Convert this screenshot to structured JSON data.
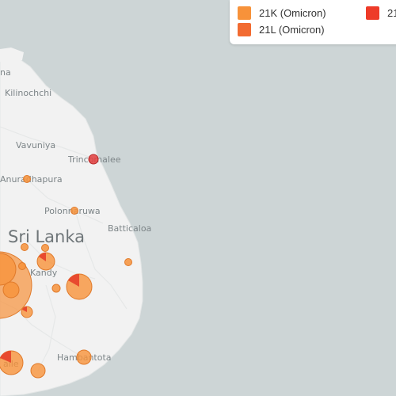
{
  "country_label": "Sri Lanka",
  "places": [
    {
      "id": "kilinochchi",
      "label": "Kilinochchi"
    },
    {
      "id": "vavuniya",
      "label": "Vavuniya"
    },
    {
      "id": "trincomalee",
      "label": "Trincomalee"
    },
    {
      "id": "anuradhapura",
      "label": "Anuradhapura"
    },
    {
      "id": "polonnaruwa",
      "label": "Polonnaruwa"
    },
    {
      "id": "batticaloa",
      "label": "Batticaloa"
    },
    {
      "id": "kandy",
      "label": "Kandy"
    },
    {
      "id": "hambantota",
      "label": "Hambantota"
    },
    {
      "id": "galle-partial",
      "label": "alle"
    },
    {
      "id": "jaffna-partial",
      "label": "na"
    }
  ],
  "legend": {
    "items": [
      {
        "label": "21K (Omicron)",
        "color": "#f7923a"
      },
      {
        "label": "21L (Omicron)",
        "color": "#f26b31"
      },
      {
        "label": "21",
        "color": "#ee3b28"
      }
    ]
  },
  "colors": {
    "water": "#cdd5d6",
    "land": "#f2f2f2",
    "circle_21k": "#f7923a",
    "circle_21l": "#f26b31",
    "circle_red": "#e33d3d"
  }
}
